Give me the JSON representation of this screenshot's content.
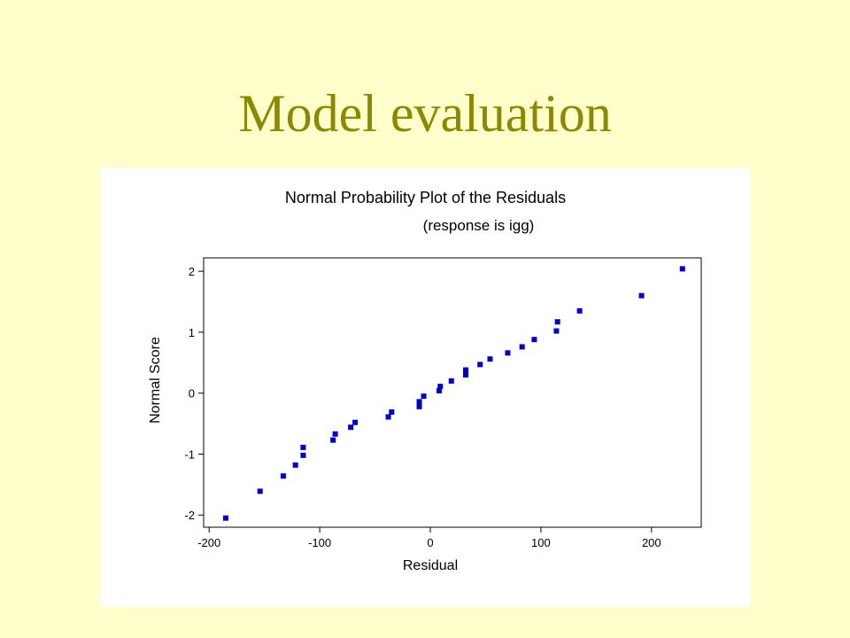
{
  "slide": {
    "title": "Model evaluation"
  },
  "chart_data": {
    "type": "scatter",
    "title": "Normal Probability Plot of the Residuals",
    "subtitle": "(response is igg)",
    "xlabel": "Residual",
    "ylabel": "Normal Score",
    "xlim": [
      -205,
      245
    ],
    "ylim": [
      -2.2,
      2.22
    ],
    "xticks": [
      -200,
      -100,
      0,
      100,
      200
    ],
    "yticks": [
      -2,
      -1,
      0,
      1,
      2
    ],
    "grid": false,
    "marker_color": "#0000CC",
    "series": [
      {
        "points": [
          [
            -185,
            -2.05
          ],
          [
            -154,
            -1.61
          ],
          [
            -133,
            -1.36
          ],
          [
            -122,
            -1.18
          ],
          [
            -115,
            -1.02
          ],
          [
            -115,
            -0.89
          ],
          [
            -88,
            -0.77
          ],
          [
            -86,
            -0.67
          ],
          [
            -72,
            -0.56
          ],
          [
            -68,
            -0.48
          ],
          [
            -38,
            -0.39
          ],
          [
            -35,
            -0.31
          ],
          [
            -10,
            -0.22
          ],
          [
            -10,
            -0.14
          ],
          [
            -6,
            -0.05
          ],
          [
            8,
            0.04
          ],
          [
            9,
            0.11
          ],
          [
            19,
            0.2
          ],
          [
            32,
            0.3
          ],
          [
            32,
            0.38
          ],
          [
            45,
            0.47
          ],
          [
            54,
            0.56
          ],
          [
            70,
            0.66
          ],
          [
            83,
            0.76
          ],
          [
            94,
            0.88
          ],
          [
            114,
            1.02
          ],
          [
            115,
            1.17
          ],
          [
            135,
            1.35
          ],
          [
            191,
            1.6
          ],
          [
            228,
            2.04
          ]
        ]
      }
    ]
  }
}
